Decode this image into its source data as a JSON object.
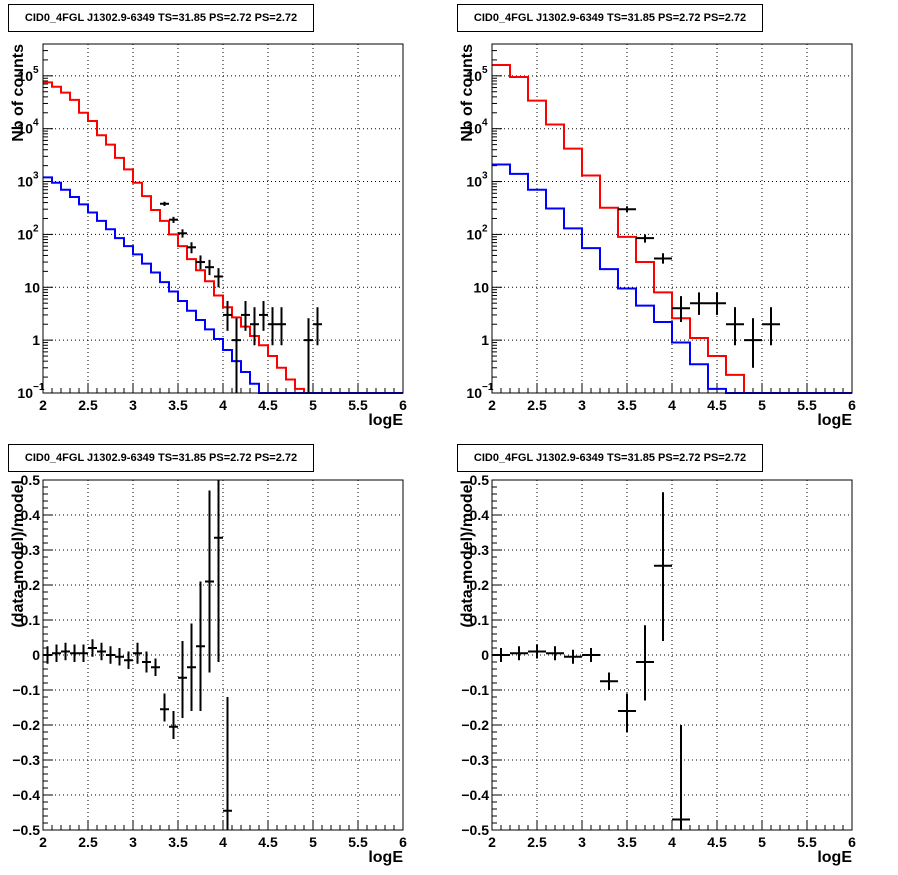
{
  "chart_data": [
    {
      "type": "line",
      "title": "CID0_4FGL J1302.9-6349 TS=31.85 PS=2.72 PS=2.72",
      "xlabel": "logE",
      "ylabel": "Nb of counts",
      "log_y": true,
      "xlim": [
        2,
        6
      ],
      "ylim": [
        0.1,
        400000
      ],
      "grid": true,
      "x_ticks": [
        "2",
        "2.5",
        "3",
        "3.5",
        "4",
        "4.5",
        "5",
        "5.5",
        "6"
      ],
      "y_ticks": [
        {
          "value": 0.1,
          "label": "10",
          "exp": "−1"
        },
        {
          "value": 1,
          "label": "1",
          "exp": ""
        },
        {
          "value": 10,
          "label": "10",
          "exp": ""
        },
        {
          "value": 100,
          "label": "10",
          "exp": "2"
        },
        {
          "value": 1000,
          "label": "10",
          "exp": "3"
        },
        {
          "value": 10000,
          "label": "10",
          "exp": "4"
        },
        {
          "value": 100000,
          "label": "10",
          "exp": "5"
        }
      ],
      "bin_width": 0.1,
      "series": [
        {
          "color": "#ff0000",
          "style": "step",
          "x_start": 2.0,
          "values": [
            75000,
            62000,
            48000,
            35000,
            20000,
            14000,
            7500,
            5000,
            2800,
            1700,
            950,
            530,
            290,
            180,
            100,
            60,
            34,
            21,
            13,
            7,
            4.2,
            2.7,
            1.8,
            1.2,
            0.8,
            0.5,
            0.3,
            0.18,
            0.12,
            0.1,
            0.1,
            0.1,
            0.1,
            0.1,
            0.1,
            0.1,
            0.1,
            0.1,
            0.1,
            0.1
          ]
        },
        {
          "color": "#0000ff",
          "style": "step",
          "x_start": 2.0,
          "values": [
            1200,
            950,
            700,
            510,
            370,
            260,
            180,
            125,
            85,
            60,
            42,
            28,
            19,
            12.5,
            8.3,
            5.5,
            3.6,
            2.4,
            1.6,
            1.05,
            0.65,
            0.4,
            0.25,
            0.15,
            0.1,
            0.1,
            0.1,
            0.1,
            0.1,
            0.1,
            0.1,
            0.1,
            0.1,
            0.1,
            0.1,
            0.1,
            0.1,
            0.1,
            0.1,
            0.1
          ]
        }
      ],
      "points": [
        {
          "x": 3.35,
          "y": 380,
          "lo": 345,
          "hi": 415,
          "xerr": 0.05
        },
        {
          "x": 3.45,
          "y": 190,
          "lo": 165,
          "hi": 215,
          "xerr": 0.05
        },
        {
          "x": 3.55,
          "y": 105,
          "lo": 87,
          "hi": 125,
          "xerr": 0.05
        },
        {
          "x": 3.65,
          "y": 57,
          "lo": 44,
          "hi": 71,
          "xerr": 0.05
        },
        {
          "x": 3.75,
          "y": 30,
          "lo": 22,
          "hi": 40,
          "xerr": 0.05
        },
        {
          "x": 3.85,
          "y": 24,
          "lo": 17,
          "hi": 33,
          "xerr": 0.05
        },
        {
          "x": 3.95,
          "y": 16,
          "lo": 10,
          "hi": 23,
          "xerr": 0.05
        },
        {
          "x": 4.05,
          "y": 3,
          "lo": 1.5,
          "hi": 5.5,
          "xerr": 0.05
        },
        {
          "x": 4.15,
          "y": 1.0,
          "lo": 0.1,
          "hi": 2.6,
          "xerr": 0.05
        },
        {
          "x": 4.25,
          "y": 3,
          "lo": 1.5,
          "hi": 5.5,
          "xerr": 0.05
        },
        {
          "x": 4.35,
          "y": 2,
          "lo": 0.8,
          "hi": 4.2,
          "xerr": 0.05
        },
        {
          "x": 4.45,
          "y": 3,
          "lo": 1.5,
          "hi": 5.5,
          "xerr": 0.05
        },
        {
          "x": 4.55,
          "y": 2,
          "lo": 0.8,
          "hi": 4.2,
          "xerr": 0.05
        },
        {
          "x": 4.65,
          "y": 2,
          "lo": 0.8,
          "hi": 4.2,
          "xerr": 0.05
        },
        {
          "x": 4.95,
          "y": 1,
          "lo": 0.1,
          "hi": 2.6,
          "xerr": 0.05
        },
        {
          "x": 5.05,
          "y": 2,
          "lo": 0.8,
          "hi": 4.2,
          "xerr": 0.05
        }
      ]
    },
    {
      "type": "line",
      "title": "CID0_4FGL J1302.9-6349 TS=31.85 PS=2.72 PS=2.72",
      "xlabel": "logE",
      "ylabel": "Nb of counts",
      "log_y": true,
      "xlim": [
        2,
        6
      ],
      "ylim": [
        0.1,
        400000
      ],
      "grid": true,
      "x_ticks": [
        "2",
        "2.5",
        "3",
        "3.5",
        "4",
        "4.5",
        "5",
        "5.5",
        "6"
      ],
      "y_ticks": [
        {
          "value": 0.1,
          "label": "10",
          "exp": "−1"
        },
        {
          "value": 1,
          "label": "1",
          "exp": ""
        },
        {
          "value": 10,
          "label": "10",
          "exp": ""
        },
        {
          "value": 100,
          "label": "10",
          "exp": "2"
        },
        {
          "value": 1000,
          "label": "10",
          "exp": "3"
        },
        {
          "value": 10000,
          "label": "10",
          "exp": "4"
        },
        {
          "value": 100000,
          "label": "10",
          "exp": "5"
        }
      ],
      "bin_width": 0.2,
      "series": [
        {
          "color": "#ff0000",
          "style": "step",
          "x_start": 2.0,
          "values": [
            160000,
            95000,
            34000,
            12000,
            4200,
            1300,
            320,
            90,
            30,
            8,
            2.6,
            1.1,
            0.5,
            0.22,
            0.1,
            0.1,
            0.1,
            0.1,
            0.1,
            0.1
          ]
        },
        {
          "color": "#0000ff",
          "style": "step",
          "x_start": 2.0,
          "values": [
            2100,
            1400,
            700,
            310,
            130,
            55,
            22,
            9.5,
            4.5,
            2.2,
            0.9,
            0.35,
            0.12,
            0.1,
            0.1,
            0.1,
            0.1,
            0.1,
            0.1,
            0.1
          ]
        }
      ],
      "points": [
        {
          "x": 3.5,
          "y": 300,
          "lo": 265,
          "hi": 340,
          "xerr": 0.1
        },
        {
          "x": 3.7,
          "y": 85,
          "lo": 70,
          "hi": 100,
          "xerr": 0.1
        },
        {
          "x": 3.9,
          "y": 35,
          "lo": 28,
          "hi": 44,
          "xerr": 0.1
        },
        {
          "x": 4.1,
          "y": 4,
          "lo": 2.2,
          "hi": 6.8,
          "xerr": 0.1
        },
        {
          "x": 4.3,
          "y": 5,
          "lo": 3,
          "hi": 8,
          "xerr": 0.1
        },
        {
          "x": 4.5,
          "y": 5,
          "lo": 3,
          "hi": 8,
          "xerr": 0.1
        },
        {
          "x": 4.7,
          "y": 2,
          "lo": 0.8,
          "hi": 4.2,
          "xerr": 0.1
        },
        {
          "x": 4.9,
          "y": 1,
          "lo": 0.3,
          "hi": 2.6,
          "xerr": 0.1
        },
        {
          "x": 5.1,
          "y": 2,
          "lo": 0.8,
          "hi": 4.2,
          "xerr": 0.1
        }
      ]
    },
    {
      "type": "scatter",
      "title": "CID0_4FGL J1302.9-6349 TS=31.85 PS=2.72 PS=2.72",
      "xlabel": "logE",
      "ylabel": "(data-model)/model",
      "log_y": false,
      "xlim": [
        2,
        6
      ],
      "ylim": [
        -0.5,
        0.5
      ],
      "grid": true,
      "x_ticks": [
        "2",
        "2.5",
        "3",
        "3.5",
        "4",
        "4.5",
        "5",
        "5.5",
        "6"
      ],
      "y_ticks": [
        {
          "value": -0.5,
          "label": "−0.5"
        },
        {
          "value": -0.4,
          "label": "−0.4"
        },
        {
          "value": -0.3,
          "label": "−0.3"
        },
        {
          "value": -0.2,
          "label": "−0.2"
        },
        {
          "value": -0.1,
          "label": "−0.1"
        },
        {
          "value": 0,
          "label": "0"
        },
        {
          "value": 0.1,
          "label": "0.1"
        },
        {
          "value": 0.2,
          "label": "0.2"
        },
        {
          "value": 0.3,
          "label": "0.3"
        },
        {
          "value": 0.4,
          "label": "0.4"
        },
        {
          "value": 0.5,
          "label": "0.5"
        }
      ],
      "points": [
        {
          "x": 2.05,
          "y": 0.0,
          "lo": -0.025,
          "hi": 0.025,
          "xerr": 0.05
        },
        {
          "x": 2.15,
          "y": 0.005,
          "lo": -0.02,
          "hi": 0.03,
          "xerr": 0.05
        },
        {
          "x": 2.25,
          "y": 0.01,
          "lo": -0.015,
          "hi": 0.035,
          "xerr": 0.05
        },
        {
          "x": 2.35,
          "y": 0.005,
          "lo": -0.02,
          "hi": 0.03,
          "xerr": 0.05
        },
        {
          "x": 2.45,
          "y": 0.005,
          "lo": -0.02,
          "hi": 0.03,
          "xerr": 0.05
        },
        {
          "x": 2.55,
          "y": 0.02,
          "lo": -0.005,
          "hi": 0.045,
          "xerr": 0.05
        },
        {
          "x": 2.65,
          "y": 0.01,
          "lo": -0.015,
          "hi": 0.035,
          "xerr": 0.05
        },
        {
          "x": 2.75,
          "y": 0.0,
          "lo": -0.025,
          "hi": 0.025,
          "xerr": 0.05
        },
        {
          "x": 2.85,
          "y": -0.005,
          "lo": -0.03,
          "hi": 0.02,
          "xerr": 0.05
        },
        {
          "x": 2.95,
          "y": -0.015,
          "lo": -0.04,
          "hi": 0.01,
          "xerr": 0.05
        },
        {
          "x": 3.05,
          "y": 0.005,
          "lo": -0.025,
          "hi": 0.035,
          "xerr": 0.05
        },
        {
          "x": 3.15,
          "y": -0.02,
          "lo": -0.05,
          "hi": 0.01,
          "xerr": 0.05
        },
        {
          "x": 3.25,
          "y": -0.035,
          "lo": -0.06,
          "hi": -0.01,
          "xerr": 0.05
        },
        {
          "x": 3.35,
          "y": -0.155,
          "lo": -0.19,
          "hi": -0.11,
          "xerr": 0.05
        },
        {
          "x": 3.45,
          "y": -0.205,
          "lo": -0.24,
          "hi": -0.16,
          "xerr": 0.05
        },
        {
          "x": 3.55,
          "y": -0.065,
          "lo": -0.18,
          "hi": 0.04,
          "xerr": 0.05
        },
        {
          "x": 3.65,
          "y": -0.035,
          "lo": -0.16,
          "hi": 0.09,
          "xerr": 0.05
        },
        {
          "x": 3.75,
          "y": 0.025,
          "lo": -0.16,
          "hi": 0.21,
          "xerr": 0.05
        },
        {
          "x": 3.85,
          "y": 0.21,
          "lo": -0.05,
          "hi": 0.47,
          "xerr": 0.05
        },
        {
          "x": 3.95,
          "y": 0.335,
          "lo": -0.02,
          "hi": 0.5,
          "xerr": 0.05
        },
        {
          "x": 4.05,
          "y": -0.445,
          "lo": -0.5,
          "hi": -0.12,
          "xerr": 0.05
        }
      ]
    },
    {
      "type": "scatter",
      "title": "CID0_4FGL J1302.9-6349 TS=31.85 PS=2.72 PS=2.72",
      "xlabel": "logE",
      "ylabel": "(data-model)/model",
      "log_y": false,
      "xlim": [
        2,
        6
      ],
      "ylim": [
        -0.5,
        0.5
      ],
      "grid": true,
      "x_ticks": [
        "2",
        "2.5",
        "3",
        "3.5",
        "4",
        "4.5",
        "5",
        "5.5",
        "6"
      ],
      "y_ticks": [
        {
          "value": -0.5,
          "label": "−0.5"
        },
        {
          "value": -0.4,
          "label": "−0.4"
        },
        {
          "value": -0.3,
          "label": "−0.3"
        },
        {
          "value": -0.2,
          "label": "−0.2"
        },
        {
          "value": -0.1,
          "label": "−0.1"
        },
        {
          "value": 0,
          "label": "0"
        },
        {
          "value": 0.1,
          "label": "0.1"
        },
        {
          "value": 0.2,
          "label": "0.2"
        },
        {
          "value": 0.3,
          "label": "0.3"
        },
        {
          "value": 0.4,
          "label": "0.4"
        },
        {
          "value": 0.5,
          "label": "0.5"
        }
      ],
      "points": [
        {
          "x": 2.1,
          "y": 0.0,
          "lo": -0.02,
          "hi": 0.02,
          "xerr": 0.1
        },
        {
          "x": 2.3,
          "y": 0.005,
          "lo": -0.015,
          "hi": 0.025,
          "xerr": 0.1
        },
        {
          "x": 2.5,
          "y": 0.01,
          "lo": -0.01,
          "hi": 0.03,
          "xerr": 0.1
        },
        {
          "x": 2.7,
          "y": 0.005,
          "lo": -0.015,
          "hi": 0.025,
          "xerr": 0.1
        },
        {
          "x": 2.9,
          "y": -0.005,
          "lo": -0.025,
          "hi": 0.015,
          "xerr": 0.1
        },
        {
          "x": 3.1,
          "y": 0.0,
          "lo": -0.02,
          "hi": 0.02,
          "xerr": 0.1
        },
        {
          "x": 3.3,
          "y": -0.075,
          "lo": -0.1,
          "hi": -0.05,
          "xerr": 0.1
        },
        {
          "x": 3.5,
          "y": -0.16,
          "lo": -0.22,
          "hi": -0.11,
          "xerr": 0.1
        },
        {
          "x": 3.7,
          "y": -0.02,
          "lo": -0.13,
          "hi": 0.085,
          "xerr": 0.1
        },
        {
          "x": 3.9,
          "y": 0.255,
          "lo": 0.04,
          "hi": 0.465,
          "xerr": 0.1
        },
        {
          "x": 4.1,
          "y": -0.47,
          "lo": -0.5,
          "hi": -0.2,
          "xerr": 0.1
        }
      ]
    }
  ]
}
